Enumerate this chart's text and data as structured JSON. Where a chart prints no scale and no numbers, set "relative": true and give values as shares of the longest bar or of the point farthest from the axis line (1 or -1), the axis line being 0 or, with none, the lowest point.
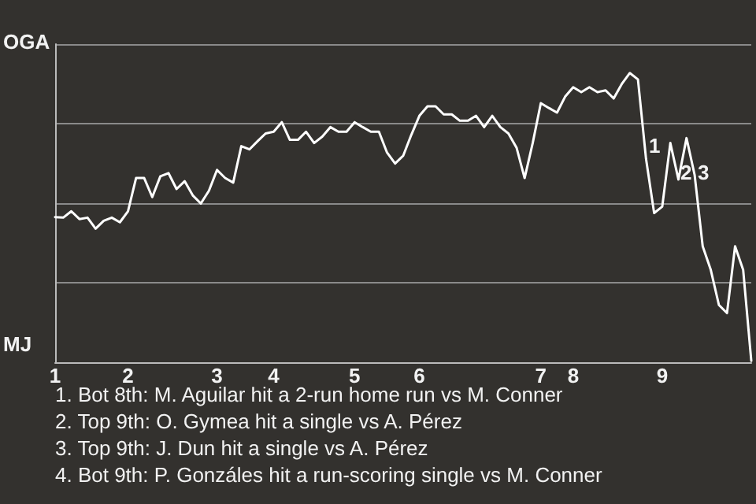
{
  "chart_data": {
    "type": "line",
    "relative": true,
    "categories": [
      "1",
      null,
      null,
      null,
      null,
      null,
      null,
      null,
      null,
      "2",
      null,
      null,
      null,
      null,
      null,
      null,
      null,
      null,
      null,
      null,
      "3",
      null,
      null,
      null,
      null,
      null,
      null,
      "4",
      null,
      null,
      null,
      null,
      null,
      null,
      null,
      null,
      null,
      "5",
      null,
      null,
      null,
      null,
      null,
      null,
      null,
      "6",
      null,
      null,
      null,
      null,
      null,
      null,
      null,
      null,
      null,
      null,
      null,
      null,
      null,
      null,
      "7",
      null,
      null,
      null,
      "8",
      null,
      null,
      null,
      null,
      null,
      null,
      null,
      null,
      null,
      null,
      "9",
      null,
      null,
      null,
      null,
      null,
      null,
      null,
      null,
      null,
      null,
      null
    ],
    "grid": "y",
    "marker": "none",
    "line_style": "solid",
    "series": [
      {
        "color": "#ffffff",
        "values": [
          0.502,
          0.5,
          0.522,
          0.495,
          0.5,
          0.462,
          0.489,
          0.5,
          0.484,
          0.522,
          0.637,
          0.637,
          0.571,
          0.643,
          0.654,
          0.599,
          0.626,
          0.577,
          0.549,
          0.593,
          0.665,
          0.637,
          0.621,
          0.747,
          0.736,
          0.764,
          0.791,
          0.797,
          0.83,
          0.769,
          0.769,
          0.797,
          0.758,
          0.78,
          0.813,
          0.797,
          0.797,
          0.83,
          0.813,
          0.797,
          0.797,
          0.725,
          0.687,
          0.714,
          0.786,
          0.852,
          0.885,
          0.885,
          0.857,
          0.857,
          0.835,
          0.835,
          0.852,
          0.813,
          0.852,
          0.813,
          0.791,
          0.742,
          0.637,
          0.758,
          0.896,
          0.879,
          0.863,
          0.918,
          0.951,
          0.934,
          0.951,
          0.934,
          0.94,
          0.912,
          0.962,
          1,
          0.978,
          0.703,
          0.516,
          0.538,
          0.758,
          0.632,
          0.775,
          0.648,
          0.401,
          0.319,
          0.198,
          0.17,
          0.401,
          0.319,
          0.005
        ]
      }
    ],
    "annotations": [
      "OGA",
      "MJ",
      "1",
      "2",
      "3",
      "1. Bot 8th: M. Aguilar hit a 2-run home run vs M. Conner",
      "2. Top 9th: O. Gymea hit a single vs A. Pérez",
      "3. Top 9th: J. Dun hit a single vs A. Pérez",
      "4. Bot 9th: P. Gonzáles hit a run-scoring single vs M. Conner"
    ]
  }
}
